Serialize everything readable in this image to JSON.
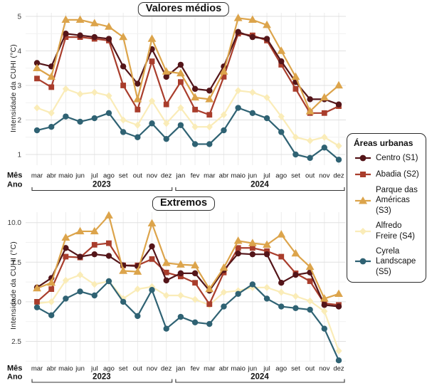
{
  "legend": {
    "title": "Áreas urbanas",
    "position": "right",
    "items": [
      {
        "label": "Centro (S1)",
        "marker": "circle",
        "color": "#541519"
      },
      {
        "label": "Abadia (S2)",
        "marker": "square",
        "color": "#A93D2C"
      },
      {
        "label": "Parque das Américas (S3)",
        "marker": "triangle",
        "color": "#DCA44B"
      },
      {
        "label": "Alfredo Freire (S4)",
        "marker": "diamond",
        "color": "#FAECB8"
      },
      {
        "label": "Cyrela Landscape (S5)",
        "marker": "circle",
        "color": "#2F6273"
      }
    ]
  },
  "chart_data": [
    {
      "type": "line",
      "title": "Valores médios",
      "ylabel": "Intensidade da CUHI (°C)",
      "ylim": [
        0.65,
        5.15
      ],
      "yticks": [
        1,
        2,
        3,
        4,
        5
      ],
      "ytick_labels": [
        "1",
        "2",
        "3",
        "4",
        "5"
      ],
      "ygrid_minor": [
        1.5,
        2.5,
        3.5,
        4.5
      ],
      "grid": true,
      "categories": [
        "mar",
        "abr",
        "maio",
        "jun",
        "jul",
        "ago",
        "set",
        "out",
        "nov",
        "dez",
        "jan",
        "fev",
        "mar",
        "abr",
        "maio",
        "jun",
        "jul",
        "ago",
        "set",
        "out",
        "nov",
        "dez"
      ],
      "x_axis": {
        "mes": "Mês",
        "ano": "Ano",
        "year_groups": [
          {
            "label": "2023",
            "from": 0,
            "to": 9
          },
          {
            "label": "2024",
            "from": 10,
            "to": 21
          }
        ]
      },
      "series": [
        {
          "name": "Centro (S1)",
          "marker": "circle",
          "color": "#541519",
          "values": [
            3.65,
            3.55,
            4.5,
            4.45,
            4.4,
            4.35,
            3.55,
            3.05,
            4.05,
            3.25,
            3.6,
            2.9,
            2.85,
            3.55,
            4.55,
            4.4,
            4.35,
            3.7,
            3.1,
            2.6,
            2.6,
            2.45
          ]
        },
        {
          "name": "Abadia (S2)",
          "marker": "square",
          "color": "#A93D2C",
          "values": [
            3.2,
            2.95,
            4.4,
            4.4,
            4.35,
            4.3,
            3.0,
            2.3,
            3.7,
            2.45,
            3.1,
            2.3,
            2.15,
            3.25,
            4.5,
            4.45,
            4.3,
            3.6,
            2.9,
            2.2,
            2.2,
            2.4
          ]
        },
        {
          "name": "Parque das Américas (S3)",
          "marker": "triangle",
          "color": "#DCA44B",
          "values": [
            3.5,
            3.25,
            4.9,
            4.9,
            4.8,
            4.7,
            4.4,
            2.6,
            4.35,
            3.4,
            3.35,
            2.65,
            2.6,
            3.4,
            4.95,
            4.9,
            4.75,
            4.0,
            3.25,
            2.25,
            2.65,
            3.0
          ]
        },
        {
          "name": "Alfredo Freire (S4)",
          "marker": "diamond",
          "color": "#FAECB8",
          "values": [
            2.35,
            2.2,
            2.9,
            2.75,
            2.8,
            2.7,
            2.0,
            1.85,
            2.55,
            1.9,
            2.35,
            1.8,
            1.8,
            2.15,
            2.85,
            2.8,
            2.65,
            2.1,
            1.5,
            1.4,
            1.5,
            1.25
          ]
        },
        {
          "name": "Cyrela Landscape (S5)",
          "marker": "circle",
          "color": "#2F6273",
          "values": [
            1.7,
            1.8,
            2.1,
            1.95,
            2.05,
            2.2,
            1.65,
            1.5,
            1.9,
            1.45,
            1.85,
            1.3,
            1.3,
            1.7,
            2.35,
            2.2,
            2.05,
            1.65,
            1.0,
            0.9,
            1.2,
            0.85
          ]
        }
      ]
    },
    {
      "type": "line",
      "title": "Extremos",
      "ylabel": "Intensidade da CUHI (°C)",
      "ylim": [
        1.1,
        10.65
      ],
      "yticks": [
        2.5,
        5.0,
        7.5,
        10.0
      ],
      "ytick_labels": [
        "2.5",
        "5.0",
        "7.5",
        "10.0"
      ],
      "ygrid_minor": [
        1.25,
        3.75,
        6.25,
        8.75
      ],
      "grid": true,
      "categories": [
        "mar",
        "abr",
        "maio",
        "jun",
        "jul",
        "ago",
        "set",
        "out",
        "nov",
        "dez",
        "jan",
        "fev",
        "mar",
        "abr",
        "maio",
        "jun",
        "jul",
        "ago",
        "set",
        "out",
        "nov",
        "dez"
      ],
      "x_axis": {
        "mes": "Mês",
        "ano": "Ano",
        "year_groups": [
          {
            "label": "2023",
            "from": 0,
            "to": 9
          },
          {
            "label": "2024",
            "from": 10,
            "to": 21
          }
        ]
      },
      "series": [
        {
          "name": "Centro (S1)",
          "marker": "circle",
          "color": "#541519",
          "values": [
            5.9,
            6.5,
            8.4,
            7.85,
            8.0,
            7.9,
            7.3,
            7.25,
            8.5,
            6.35,
            6.8,
            6.8,
            5.7,
            7.0,
            8.05,
            8.0,
            8.0,
            6.2,
            6.7,
            6.85,
            4.8,
            4.7
          ]
        },
        {
          "name": "Abadia (S2)",
          "marker": "square",
          "color": "#A93D2C",
          "values": [
            5.0,
            5.8,
            7.85,
            7.8,
            8.6,
            8.7,
            7.3,
            7.3,
            7.7,
            6.85,
            6.6,
            6.2,
            4.85,
            6.85,
            8.4,
            8.4,
            8.2,
            7.85,
            6.8,
            6.3,
            4.9,
            4.8
          ]
        },
        {
          "name": "Parque das Américas (S3)",
          "marker": "triangle",
          "color": "#DCA44B",
          "values": [
            5.85,
            6.2,
            9.05,
            9.45,
            9.45,
            10.45,
            6.95,
            6.9,
            9.95,
            7.45,
            7.35,
            7.3,
            5.8,
            7.15,
            8.85,
            8.7,
            8.6,
            9.25,
            8.05,
            7.2,
            5.2,
            5.5
          ]
        },
        {
          "name": "Alfredo Freire (S4)",
          "marker": "diamond",
          "color": "#FAECB8",
          "values": [
            4.9,
            5.0,
            6.35,
            6.7,
            6.1,
            6.3,
            5.2,
            5.8,
            5.95,
            5.4,
            5.4,
            5.15,
            4.8,
            5.6,
            5.7,
            5.9,
            5.9,
            5.6,
            5.35,
            5.05,
            4.4,
            1.9
          ]
        },
        {
          "name": "Cyrela Landscape (S5)",
          "marker": "circle",
          "color": "#2F6273",
          "values": [
            4.65,
            4.15,
            5.2,
            5.65,
            5.4,
            6.3,
            5.0,
            4.1,
            5.75,
            3.3,
            4.05,
            3.7,
            3.6,
            4.7,
            5.5,
            6.1,
            5.2,
            4.7,
            4.6,
            4.5,
            3.3,
            1.3
          ]
        }
      ]
    }
  ]
}
